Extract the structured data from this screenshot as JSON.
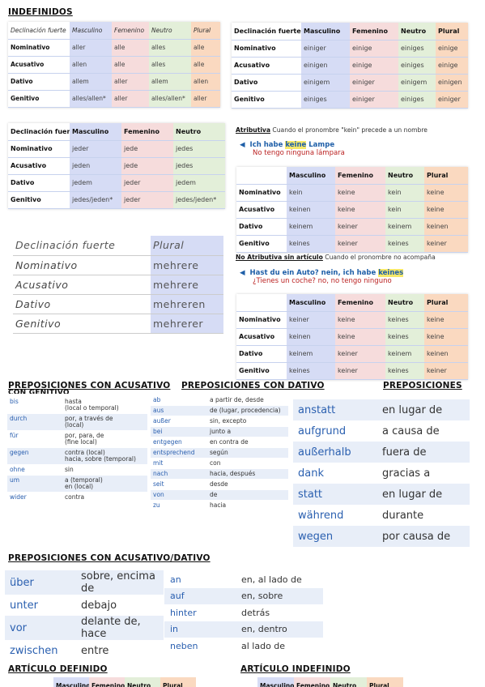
{
  "headings": {
    "indefinidos": "INDEFINIDOS",
    "prep_acus": "PREPOSICIONES CON ACUSATIVO",
    "prep_dat": "PREPOSICIONES CON DATIVO",
    "prep_gen": "PREPOSICIONES",
    "prep_gen_clip": "CON GENITIVO",
    "prep_acdat": "PREPOSICIONES CON ACUSATIVO/DATIVO",
    "art_def": "ARTÍCULO DEFINIDO",
    "art_indef": "ARTÍCULO INDEFINIDO"
  },
  "t1": {
    "head": [
      "Declinación fuerte",
      "Masculino",
      "Femenino",
      "Neutro",
      "Plural"
    ],
    "rows": [
      [
        "Nominativo",
        "aller",
        "alle",
        "alles",
        "alle"
      ],
      [
        "Acusativo",
        "allen",
        "alle",
        "alles",
        "alle"
      ],
      [
        "Dativo",
        "allem",
        "aller",
        "allem",
        "allen"
      ],
      [
        "Genitivo",
        "alles/allen*",
        "aller",
        "alles/allen*",
        "aller"
      ]
    ]
  },
  "t2": {
    "head": [
      "Declinación fuerte",
      "Masculino",
      "Femenino",
      "Neutro",
      "Plural"
    ],
    "rows": [
      [
        "Nominativo",
        "einiger",
        "einige",
        "einiges",
        "einige"
      ],
      [
        "Acusativo",
        "einigen",
        "einige",
        "einiges",
        "einige"
      ],
      [
        "Dativo",
        "einigem",
        "einiger",
        "einigem",
        "einigen"
      ],
      [
        "Genitivo",
        "einiges",
        "einiger",
        "einiges",
        "einiger"
      ]
    ]
  },
  "t3": {
    "head": [
      "Declinación fuerte",
      "Masculino",
      "Femenino",
      "Neutro"
    ],
    "rows": [
      [
        "Nominativo",
        "jeder",
        "jede",
        "jedes"
      ],
      [
        "Acusativo",
        "jeden",
        "jede",
        "jedes"
      ],
      [
        "Dativo",
        "jedem",
        "jeder",
        "jedem"
      ],
      [
        "Genitivo",
        "jedes/jeden*",
        "jeder",
        "jedes/jeden*"
      ]
    ]
  },
  "t4": {
    "head": [
      "Declinación fuerte",
      "Plural"
    ],
    "rows": [
      [
        "Nominativo",
        "mehrere"
      ],
      [
        "Acusativo",
        "mehrere"
      ],
      [
        "Dativo",
        "mehreren"
      ],
      [
        "Genitivo",
        "mehrerer"
      ]
    ]
  },
  "attr": {
    "label": "Atributiva",
    "text": " Cuando el pronombre \"kein\" precede a un nombre",
    "de_pre": "Ich habe ",
    "de_hl": "keine",
    "de_post": " Lampe",
    "es": "No tengo ninguna lámpara"
  },
  "t5": {
    "head": [
      "",
      "Masculino",
      "Femenino",
      "Neutro",
      "Plural"
    ],
    "rows": [
      [
        "Nominativo",
        "kein",
        "keine",
        "kein",
        "keine"
      ],
      [
        "Acusativo",
        "keinen",
        "keine",
        "kein",
        "keine"
      ],
      [
        "Dativo",
        "keinem",
        "keiner",
        "keinem",
        "keinen"
      ],
      [
        "Genitivo",
        "keines",
        "keiner",
        "keines",
        "keiner"
      ]
    ]
  },
  "nattr": {
    "label": "No Atributiva sin artículo",
    "text": " Cuando el pronombre no acompaña",
    "de_pre": "Hast du ein Auto? nein, ich habe ",
    "de_hl": "keines",
    "es": "¿Tienes un coche? no, no tengo ninguno"
  },
  "t6": {
    "head": [
      "",
      "Masculino",
      "Femenino",
      "Neutro",
      "Plural"
    ],
    "rows": [
      [
        "Nominativo",
        "keiner",
        "keine",
        "keines",
        "keine"
      ],
      [
        "Acusativo",
        "keinen",
        "keine",
        "keines",
        "keine"
      ],
      [
        "Dativo",
        "keinem",
        "keiner",
        "keinem",
        "keinen"
      ],
      [
        "Genitivo",
        "keines",
        "keiner",
        "keines",
        "keiner"
      ]
    ]
  },
  "acus": [
    [
      "bis",
      "hasta\n(local o temporal)"
    ],
    [
      "durch",
      "por, a través de\n(local)"
    ],
    [
      "für",
      "por, para, de\n(fine local)"
    ],
    [
      "gegen",
      "contra (local)\nhacia, sobre (temporal)"
    ],
    [
      "ohne",
      "sin"
    ],
    [
      "um",
      "a (temporal)\nen (local)"
    ],
    [
      "wider",
      "contra"
    ]
  ],
  "dat": [
    [
      "ab",
      "a partir de, desde"
    ],
    [
      "aus",
      "de (lugar, procedencia)"
    ],
    [
      "außer",
      "sin, excepto"
    ],
    [
      "bei",
      "junto a"
    ],
    [
      "entgegen",
      "en contra de"
    ],
    [
      "entsprechend",
      "según"
    ],
    [
      "mit",
      "con"
    ],
    [
      "nach",
      "hacia, después"
    ],
    [
      "seit",
      "desde"
    ],
    [
      "von",
      "de"
    ],
    [
      "zu",
      "hacia"
    ]
  ],
  "gen": [
    [
      "anstatt",
      "en lugar de"
    ],
    [
      "aufgrund",
      "a causa de"
    ],
    [
      "außerhalb",
      "fuera de"
    ],
    [
      "dank",
      "gracias a"
    ],
    [
      "statt",
      "en lugar de"
    ],
    [
      "während",
      "durante"
    ],
    [
      "wegen",
      "por causa de"
    ]
  ],
  "acdat1": [
    [
      "über",
      "sobre, encima de"
    ],
    [
      "unter",
      "debajo"
    ],
    [
      "vor",
      "delante de, hace"
    ],
    [
      "zwischen",
      "entre"
    ]
  ],
  "acdat2": [
    [
      "an",
      "en, al lado de"
    ],
    [
      "auf",
      "en, sobre"
    ],
    [
      "hinter",
      "detrás"
    ],
    [
      "in",
      "en, dentro"
    ],
    [
      "neben",
      "al lado de"
    ]
  ],
  "artdef": [
    "Masculino",
    "Femenino",
    "Neutro",
    "Plural"
  ],
  "artindef": [
    "Masculino",
    "Femenino",
    "Neutro",
    "Plural"
  ]
}
